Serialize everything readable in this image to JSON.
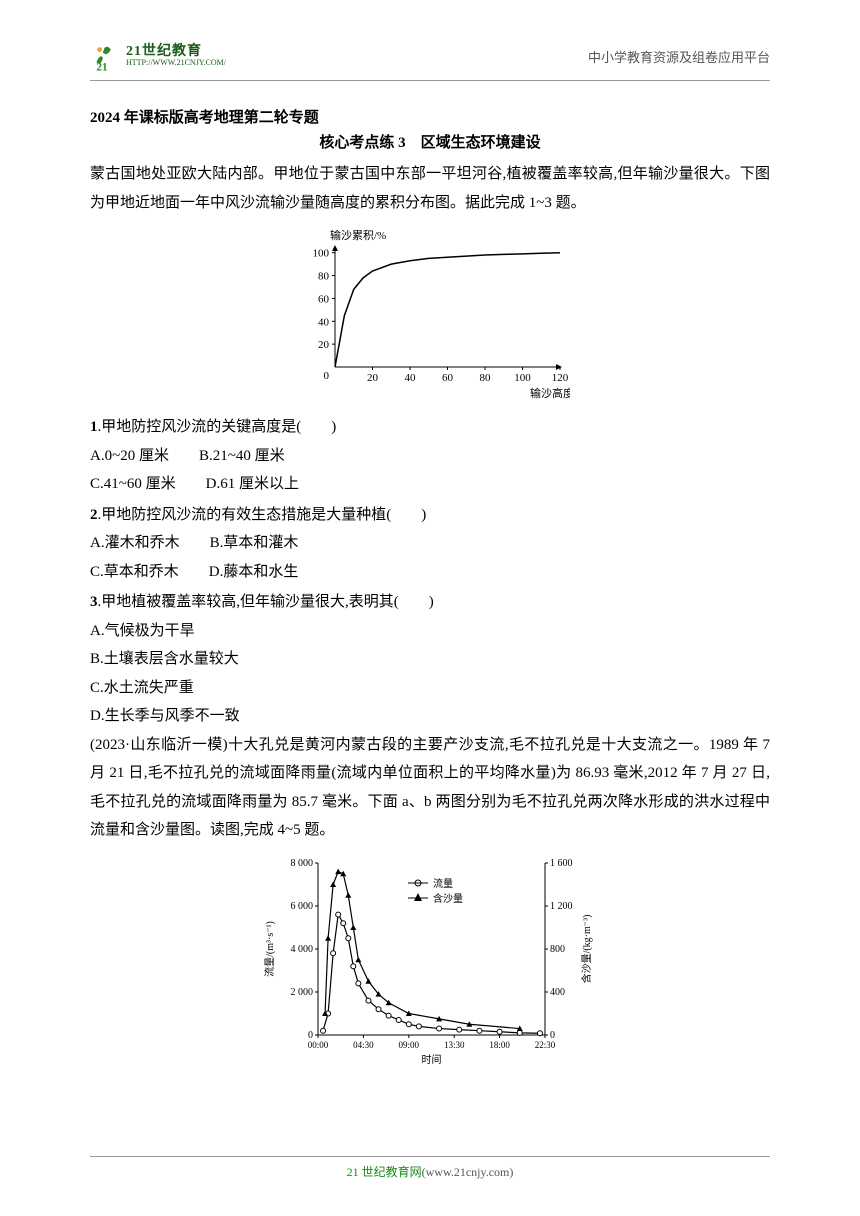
{
  "header": {
    "logo_main": "21世纪教育",
    "logo_sub": "HTTP://WWW.21CNJY.COM/",
    "right_text": "中小学教育资源及组卷应用平台"
  },
  "title_bold": "2024 年课标版高考地理第二轮专题",
  "subtitle": "核心考点练 3　区域生态环境建设",
  "intro_text": "蒙古国地处亚欧大陆内部。甲地位于蒙古国中东部一平坦河谷,植被覆盖率较高,但年输沙量很大。下图为甲地近地面一年中风沙流输沙量随高度的累积分布图。据此完成 1~3 题。",
  "chart1": {
    "type": "line",
    "y_label": "输沙累积/%",
    "x_label": "输沙高度/cm",
    "x_ticks": [
      0,
      20,
      40,
      60,
      80,
      100,
      120
    ],
    "y_ticks": [
      0,
      20,
      40,
      60,
      80,
      100
    ],
    "xlim": [
      0,
      120
    ],
    "ylim": [
      0,
      105
    ],
    "line_color": "#000000",
    "line_width": 1.5,
    "background_color": "#ffffff",
    "axis_color": "#000000",
    "label_fontsize": 11,
    "data_points": [
      [
        0,
        0
      ],
      [
        5,
        45
      ],
      [
        10,
        68
      ],
      [
        15,
        78
      ],
      [
        20,
        84
      ],
      [
        30,
        90
      ],
      [
        40,
        93
      ],
      [
        50,
        95
      ],
      [
        60,
        96
      ],
      [
        70,
        97
      ],
      [
        80,
        98
      ],
      [
        90,
        98.5
      ],
      [
        100,
        99
      ],
      [
        110,
        99.5
      ],
      [
        120,
        100
      ]
    ]
  },
  "questions": [
    {
      "num": "1",
      "text": ".甲地防控风沙流的关键高度是(　　)",
      "options_rows": [
        [
          "A.0~20 厘米",
          "B.21~40 厘米"
        ],
        [
          "C.41~60 厘米",
          "D.61 厘米以上"
        ]
      ]
    },
    {
      "num": "2",
      "text": ".甲地防控风沙流的有效生态措施是大量种植(　　)",
      "options_rows": [
        [
          "A.灌木和乔木",
          "B.草本和灌木"
        ],
        [
          "C.草本和乔木",
          "D.藤本和水生"
        ]
      ]
    },
    {
      "num": "3",
      "text": ".甲地植被覆盖率较高,但年输沙量很大,表明其(　　)",
      "options_single": [
        "A.气候极为干旱",
        "B.土壤表层含水量较大",
        "C.水土流失严重",
        "D.生长季与风季不一致"
      ]
    }
  ],
  "passage2": "(2023·山东临沂一模)十大孔兑是黄河内蒙古段的主要产沙支流,毛不拉孔兑是十大支流之一。1989 年 7 月 21 日,毛不拉孔兑的流域面降雨量(流域内单位面积上的平均降水量)为 86.93 毫米,2012 年 7 月 27 日,毛不拉孔兑的流域面降雨量为 85.7 毫米。下面 a、b 两图分别为毛不拉孔兑两次降水形成的洪水过程中流量和含沙量图。读图,完成 4~5 题。",
  "chart2": {
    "type": "line",
    "y1_label": "流量/(m³·s⁻¹)",
    "y2_label": "含沙量/(kg·m⁻³)",
    "x_label": "时间",
    "x_ticks": [
      "00:00",
      "04:30",
      "09:00",
      "13:30",
      "18:00",
      "22:30"
    ],
    "y1_ticks": [
      0,
      2000,
      4000,
      6000,
      8000
    ],
    "y2_ticks": [
      0,
      400,
      800,
      1200,
      1600
    ],
    "y1_lim": [
      0,
      8000
    ],
    "y2_lim": [
      0,
      1600
    ],
    "series": [
      {
        "name": "流量",
        "marker": "circle-open",
        "color": "#000000",
        "data": [
          [
            0.5,
            200
          ],
          [
            1,
            1000
          ],
          [
            1.5,
            3800
          ],
          [
            2,
            5600
          ],
          [
            2.5,
            5200
          ],
          [
            3,
            4500
          ],
          [
            3.5,
            3200
          ],
          [
            4,
            2400
          ],
          [
            5,
            1600
          ],
          [
            6,
            1200
          ],
          [
            7,
            900
          ],
          [
            8,
            700
          ],
          [
            9,
            500
          ],
          [
            10,
            400
          ],
          [
            12,
            300
          ],
          [
            14,
            250
          ],
          [
            16,
            200
          ],
          [
            18,
            150
          ],
          [
            20,
            100
          ],
          [
            22,
            80
          ]
        ]
      },
      {
        "name": "含沙量",
        "marker": "triangle-filled",
        "color": "#000000",
        "data": [
          [
            0.7,
            200
          ],
          [
            1,
            900
          ],
          [
            1.5,
            1400
          ],
          [
            2,
            1520
          ],
          [
            2.5,
            1500
          ],
          [
            3,
            1300
          ],
          [
            3.5,
            1000
          ],
          [
            4,
            700
          ],
          [
            5,
            500
          ],
          [
            6,
            380
          ],
          [
            7,
            300
          ],
          [
            9,
            200
          ],
          [
            12,
            150
          ],
          [
            15,
            100
          ],
          [
            20,
            60
          ]
        ]
      }
    ],
    "legend_items": [
      "流量",
      "含沙量"
    ],
    "line_width": 1.2,
    "background_color": "#ffffff",
    "axis_color": "#000000",
    "label_fontsize": 10
  },
  "footer": {
    "prefix": "21 世纪教育网",
    "url": "(www.21cnjy.com)"
  }
}
